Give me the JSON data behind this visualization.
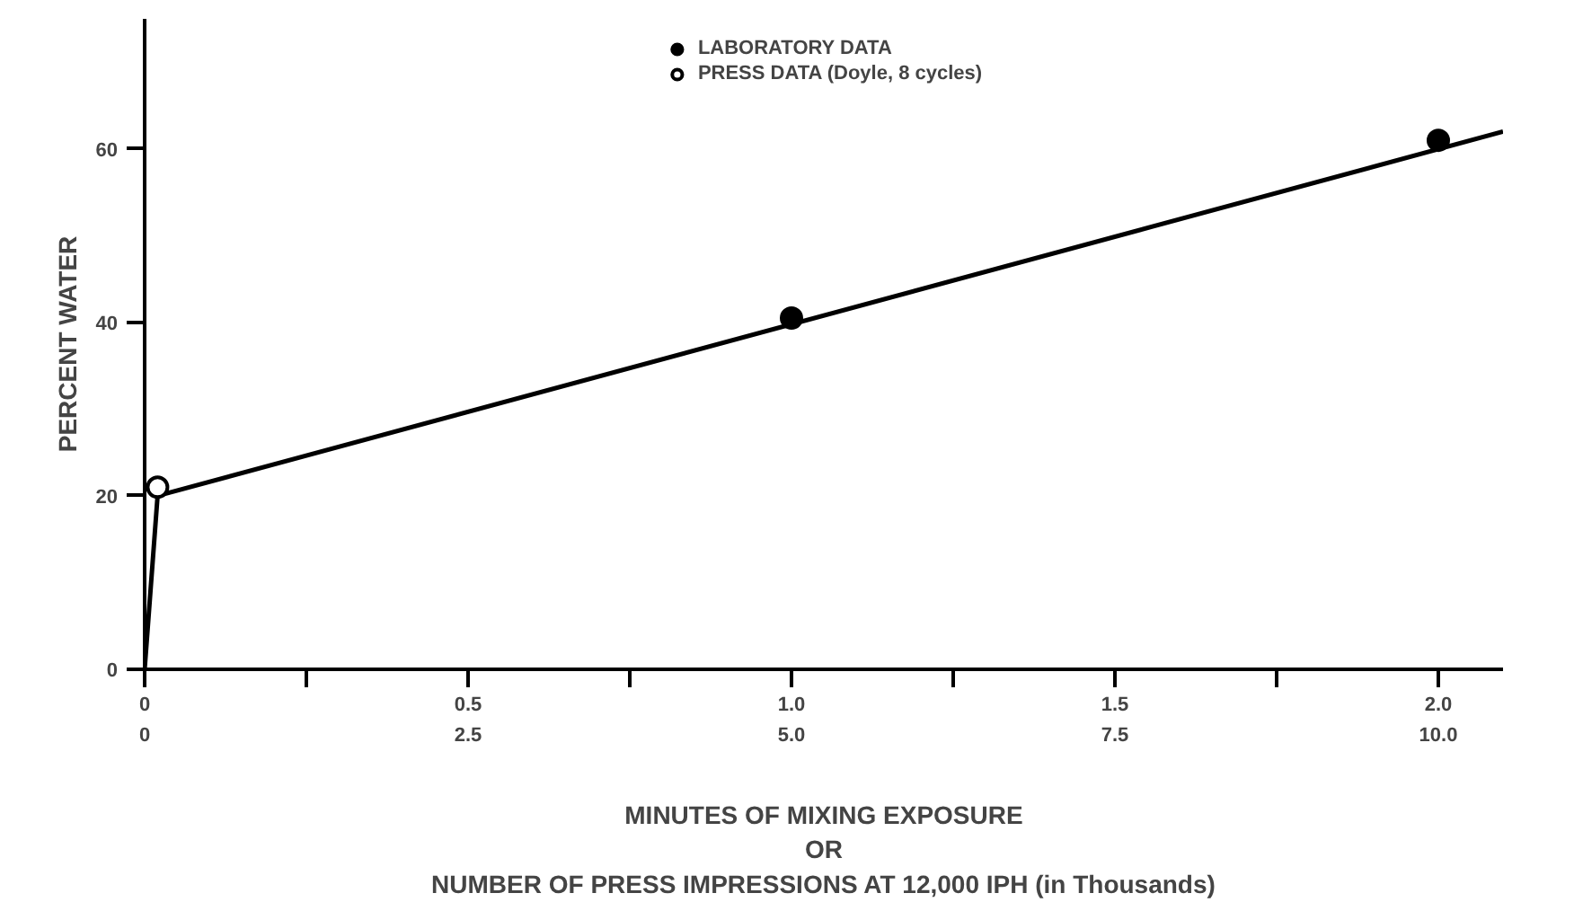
{
  "chart_data": {
    "type": "scatter",
    "xlabel": "MINUTES OF MIXING EXPOSURE\nOR\nNUMBER OF PRESS IMPRESSIONS AT 12,000 IPH (in Thousands)",
    "ylabel": "PERCENT WATER",
    "xlim": [
      0,
      2.1
    ],
    "ylim": [
      0,
      75
    ],
    "xticks": [
      0,
      {
        "value": 0.25,
        "label": null
      },
      0.5,
      {
        "value": 0.75,
        "label": null
      },
      {
        "value": 1.0,
        "label": "1.0"
      },
      {
        "value": 1.25,
        "label": null
      },
      1.5,
      {
        "value": 1.75,
        "label": null
      },
      {
        "value": 2.0,
        "label": "2.0"
      }
    ],
    "x2lim": [
      0,
      10.5
    ],
    "x2ticks": [
      0,
      2.5,
      {
        "value": 5.0,
        "label": "5.0"
      },
      7.5,
      {
        "value": 10.0,
        "label": "10.0"
      }
    ],
    "yticks": [
      0,
      20,
      40,
      60
    ],
    "series": [
      {
        "type": "line",
        "color": "#000000",
        "x": [
          0,
          0.02,
          2.1
        ],
        "values": [
          0,
          20,
          62
        ],
        "marker": "none"
      },
      {
        "name": "LABORATORY DATA",
        "color": "#000000",
        "x": [
          1.0,
          2.0
        ],
        "values": [
          40.5,
          61
        ],
        "marker": "circle"
      },
      {
        "name": "PRESS DATA (Doyle, 8 cycles)",
        "color": "#ffffff",
        "x": [
          0.02
        ],
        "values": [
          21
        ],
        "marker": "circle"
      }
    ],
    "grid": false,
    "legend": "top"
  }
}
